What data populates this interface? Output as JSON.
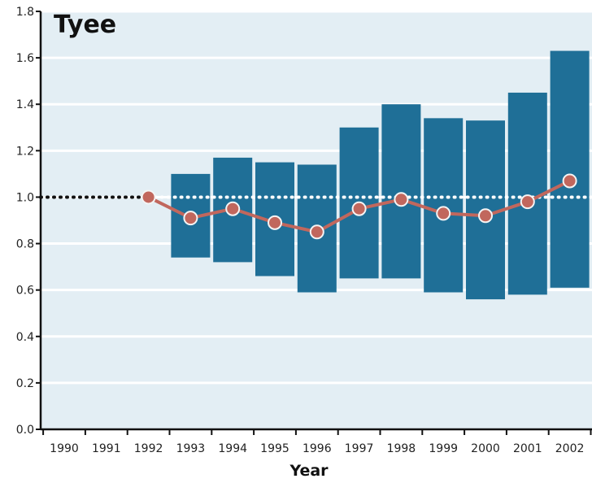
{
  "chart_data": {
    "type": "bar",
    "title": "Tyee",
    "xlabel": "Year",
    "ylabel": "",
    "ylim": [
      0,
      1.8
    ],
    "yticks": [
      "0.0",
      "0.2",
      "0.4",
      "0.6",
      "0.8",
      "1.0",
      "1.2",
      "1.4",
      "1.6",
      "1.8"
    ],
    "categories": [
      "1990",
      "1991",
      "1992",
      "1993",
      "1994",
      "1995",
      "1996",
      "1997",
      "1998",
      "1999",
      "2000",
      "2001",
      "2002"
    ],
    "reference_line": 1.0,
    "range_bars": [
      {
        "year": "1993",
        "low": 0.74,
        "high": 1.1
      },
      {
        "year": "1994",
        "low": 0.72,
        "high": 1.17
      },
      {
        "year": "1995",
        "low": 0.66,
        "high": 1.15
      },
      {
        "year": "1996",
        "low": 0.59,
        "high": 1.14
      },
      {
        "year": "1997",
        "low": 0.65,
        "high": 1.3
      },
      {
        "year": "1998",
        "low": 0.65,
        "high": 1.4
      },
      {
        "year": "1999",
        "low": 0.59,
        "high": 1.34
      },
      {
        "year": "2000",
        "low": 0.56,
        "high": 1.33
      },
      {
        "year": "2001",
        "low": 0.58,
        "high": 1.45
      },
      {
        "year": "2002",
        "low": 0.61,
        "high": 1.63
      }
    ],
    "line_series": {
      "x": [
        "1992",
        "1993",
        "1994",
        "1995",
        "1996",
        "1997",
        "1998",
        "1999",
        "2000",
        "2001",
        "2002"
      ],
      "values": [
        1.0,
        0.91,
        0.95,
        0.89,
        0.85,
        0.95,
        0.99,
        0.93,
        0.92,
        0.98,
        1.07
      ]
    },
    "grid": true,
    "colors": {
      "background": "#e3eef4",
      "bar": "#1f6f97",
      "line": "#c1675d",
      "gridline": "#ffffff",
      "axis": "#111111"
    }
  }
}
